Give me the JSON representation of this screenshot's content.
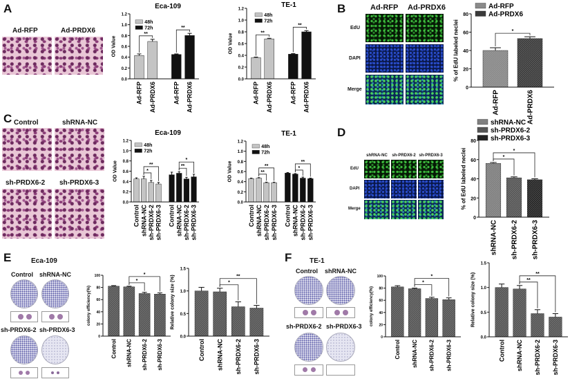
{
  "panels": {
    "A": {
      "letter": "A",
      "image_labels": [
        "Ad-RFP",
        "Ad-PRDX6"
      ]
    },
    "B": {
      "letter": "B",
      "column_labels": [
        "Ad-RFP",
        "Ad-PRDX6"
      ],
      "row_labels": [
        "EdU",
        "DAPI",
        "Merge"
      ]
    },
    "C": {
      "letter": "C",
      "image_labels": [
        "Control",
        "shRNA-NC",
        "sh-PRDX6-2",
        "sh-PRDX6-3"
      ]
    },
    "D": {
      "letter": "D",
      "column_labels": [
        "shRNA-NC",
        "sh-PRDX6-2",
        "sh-PRDX6-3"
      ],
      "row_labels": [
        "EdU",
        "DAPI",
        "Merge"
      ]
    },
    "E": {
      "letter": "E",
      "title": "Eca-109",
      "plate_labels": [
        "Control",
        "shRNA-NC",
        "sh-PRDX6-2",
        "sh-PRDX6-3"
      ]
    },
    "F": {
      "letter": "F",
      "title": "TE-1",
      "plate_labels": [
        "Control",
        "shRNA-NC",
        "sh-PRDX6-2",
        "sh-PRDX6-3"
      ]
    }
  },
  "chart_data": [
    {
      "panel": "A",
      "type": "bar",
      "title": "Eca-109",
      "ylabel": "OD Value",
      "ylim": [
        0,
        1.2
      ],
      "ytick_step": 0.2,
      "tick_decimals": 1,
      "categories": [
        "Ad-RFP",
        "Ad-PRDX6"
      ],
      "series": [
        {
          "name": "48h",
          "color": "#c4c4c4",
          "values": [
            0.43,
            0.69
          ],
          "errors": [
            0.03,
            0.04
          ]
        },
        {
          "name": "72h",
          "color": "#111111",
          "values": [
            0.45,
            0.8
          ],
          "errors": [
            0.01,
            0.04
          ]
        }
      ],
      "significance": [
        {
          "from": 0,
          "to": 1,
          "label": "**"
        },
        {
          "from": 2,
          "to": 3,
          "label": "**"
        }
      ],
      "legend": "top-left"
    },
    {
      "panel": "A",
      "type": "bar",
      "title": "TE-1",
      "ylabel": "OD Value",
      "ylim": [
        0,
        1.2
      ],
      "ytick_step": 0.2,
      "tick_decimals": 1,
      "categories": [
        "Ad-RFP",
        "Ad-PRDX6"
      ],
      "series": [
        {
          "name": "48h",
          "color": "#c4c4c4",
          "values": [
            0.36,
            0.68
          ],
          "errors": [
            0.01,
            0.01
          ]
        },
        {
          "name": "72h",
          "color": "#111111",
          "values": [
            0.42,
            0.8
          ],
          "errors": [
            0.01,
            0.02
          ]
        }
      ],
      "significance": [
        {
          "from": 0,
          "to": 1,
          "label": "**"
        },
        {
          "from": 2,
          "to": 3,
          "label": "**"
        }
      ],
      "legend": "top-left"
    },
    {
      "panel": "B",
      "type": "bar",
      "title": "",
      "ylabel": "% of EdU labeled neclei",
      "ylim": [
        0,
        80
      ],
      "ytick_step": 20,
      "tick_decimals": 0,
      "categories": [
        "Ad-RFP",
        "Ad-PRDX6"
      ],
      "values": [
        40,
        53
      ],
      "errors": [
        3,
        2
      ],
      "colors": [
        "#8a8a8a",
        "#3a3a3a"
      ],
      "legend_entries": [
        "Ad-RFP",
        "Ad-PRDX6"
      ],
      "significance": [
        {
          "from": 0,
          "to": 1,
          "label": "*"
        }
      ],
      "legend": "top-left"
    },
    {
      "panel": "C",
      "type": "bar",
      "title": "Eca-109",
      "ylabel": "OD Value",
      "ylim": [
        0,
        1.2
      ],
      "ytick_step": 0.2,
      "tick_decimals": 1,
      "categories": [
        "Control",
        "shRNA-NC",
        "sh-PRDX6-2",
        "sh-PRDX6-3"
      ],
      "series": [
        {
          "name": "48h",
          "color": "#c4c4c4",
          "values": [
            0.45,
            0.45,
            0.38,
            0.35
          ],
          "errors": [
            0.02,
            0.05,
            0.04,
            0.03
          ]
        },
        {
          "name": "72h",
          "color": "#111111",
          "values": [
            0.53,
            0.56,
            0.45,
            0.49
          ],
          "errors": [
            0.05,
            0.03,
            0.03,
            0.05
          ]
        }
      ],
      "significance": [
        {
          "from": 1,
          "to": 2,
          "label": "*"
        },
        {
          "from": 1,
          "to": 3,
          "label": "**"
        },
        {
          "from": 5,
          "to": 6,
          "label": "**"
        },
        {
          "from": 5,
          "to": 7,
          "label": "*"
        }
      ],
      "legend": "top-left"
    },
    {
      "panel": "C",
      "type": "bar",
      "title": "TE-1",
      "ylabel": "OD Value",
      "ylim": [
        0,
        1.2
      ],
      "ytick_step": 0.2,
      "tick_decimals": 1,
      "categories": [
        "Control",
        "shRNA-NC",
        "sh-PRDX6-2",
        "sh-PRDX6-3"
      ],
      "series": [
        {
          "name": "48h",
          "color": "#c4c4c4",
          "values": [
            0.46,
            0.47,
            0.38,
            0.38
          ],
          "errors": [
            0.01,
            0.01,
            0.01,
            0.01
          ]
        },
        {
          "name": "72h",
          "color": "#111111",
          "values": [
            0.57,
            0.55,
            0.47,
            0.46
          ],
          "errors": [
            0.01,
            0.01,
            0.02,
            0.01
          ]
        }
      ],
      "significance": [
        {
          "from": 1,
          "to": 2,
          "label": "**"
        },
        {
          "from": 1,
          "to": 3,
          "label": "**"
        },
        {
          "from": 5,
          "to": 6,
          "label": "*"
        },
        {
          "from": 5,
          "to": 7,
          "label": "**"
        }
      ],
      "legend": "top-left"
    },
    {
      "panel": "D",
      "type": "bar",
      "title": "",
      "ylabel": "% of EdU labeled neclei",
      "ylim": [
        0,
        80
      ],
      "ytick_step": 20,
      "tick_decimals": 0,
      "categories": [
        "shRNA-NC",
        "sh-PRDX6-2",
        "sh-PRDX6-3"
      ],
      "values": [
        56,
        41,
        39
      ],
      "errors": [
        1,
        1,
        1
      ],
      "colors": [
        "#808080",
        "#555555",
        "#222222"
      ],
      "legend_entries": [
        "shRNA-NC",
        "sh-PRDX6-2",
        "sh-PRDX6-3"
      ],
      "significance": [
        {
          "from": 0,
          "to": 1,
          "label": "*"
        },
        {
          "from": 0,
          "to": 2,
          "label": "*"
        }
      ],
      "legend": "above"
    },
    {
      "panel": "E",
      "type": "bar",
      "title": "",
      "ylabel": "colony efficiency(%)",
      "ylim": [
        0,
        100
      ],
      "ytick_step": 20,
      "tick_decimals": 0,
      "categories": [
        "Control",
        "shRNA-NC",
        "sh-PRDX6-2",
        "sh-PRDX6-3"
      ],
      "values": [
        82,
        81,
        70,
        69
      ],
      "errors": [
        1,
        1,
        2,
        2
      ],
      "colors": [
        "#555555",
        "#555555",
        "#555555",
        "#555555"
      ],
      "significance": [
        {
          "from": 1,
          "to": 2,
          "label": "*"
        },
        {
          "from": 1,
          "to": 3,
          "label": "*"
        }
      ]
    },
    {
      "panel": "E",
      "type": "bar",
      "title": "",
      "ylabel": "Relative colony size (%)",
      "ylim": [
        0,
        1.5
      ],
      "ytick_step": 0.5,
      "tick_decimals": 1,
      "categories": [
        "Control",
        "shRNA-NC",
        "sh-PRDX6-2",
        "sh-PRDX6-3"
      ],
      "values": [
        1.0,
        0.98,
        0.65,
        0.62
      ],
      "errors": [
        0.08,
        0.08,
        0.11,
        0.06
      ],
      "colors": [
        "#555555",
        "#555555",
        "#555555",
        "#555555"
      ],
      "significance": [
        {
          "from": 1,
          "to": 2,
          "label": "*"
        },
        {
          "from": 1,
          "to": 3,
          "label": "**"
        }
      ]
    },
    {
      "panel": "F",
      "type": "bar",
      "title": "",
      "ylabel": "colony efficiency(%)",
      "ylim": [
        0,
        100
      ],
      "ytick_step": 20,
      "tick_decimals": 0,
      "categories": [
        "Control",
        "shRNA-NC",
        "sh-PRDX6-2",
        "sh-PRDX6-3"
      ],
      "values": [
        82,
        79,
        63,
        61
      ],
      "errors": [
        2,
        1,
        2,
        3
      ],
      "colors": [
        "#555555",
        "#555555",
        "#555555",
        "#555555"
      ],
      "significance": [
        {
          "from": 1,
          "to": 2,
          "label": "*"
        },
        {
          "from": 1,
          "to": 3,
          "label": "*"
        }
      ]
    },
    {
      "panel": "F",
      "type": "bar",
      "title": "",
      "ylabel": "Relative colony size (%)",
      "ylim": [
        0,
        1.5
      ],
      "ytick_step": 0.5,
      "tick_decimals": 1,
      "categories": [
        "Control",
        "shRNA-NC",
        "sh-PRDX6-2",
        "sh-PRDX6-3"
      ],
      "values": [
        1.0,
        0.97,
        0.47,
        0.4
      ],
      "errors": [
        0.07,
        0.07,
        0.08,
        0.07
      ],
      "colors": [
        "#555555",
        "#555555",
        "#555555",
        "#555555"
      ],
      "significance": [
        {
          "from": 1,
          "to": 2,
          "label": "**"
        },
        {
          "from": 1,
          "to": 3,
          "label": "**"
        }
      ]
    }
  ]
}
